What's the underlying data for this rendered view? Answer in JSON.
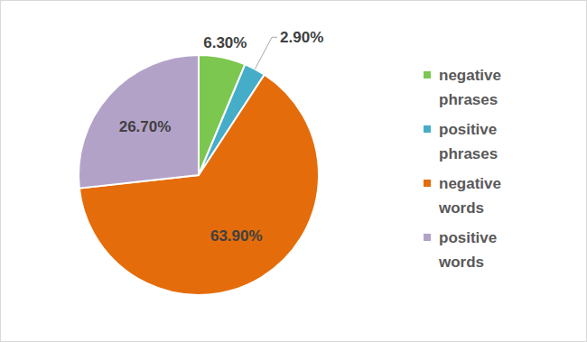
{
  "chart_data": {
    "type": "pie",
    "categories": [
      "negative phrases",
      "positive phrases",
      "negative words",
      "positive words"
    ],
    "values": [
      6.3,
      2.9,
      63.9,
      26.7
    ],
    "value_labels": [
      "6.30%",
      "2.90%",
      "63.90%",
      "26.70%"
    ],
    "colors": [
      "#7cc750",
      "#46adc8",
      "#e46c0a",
      "#b3a2c8"
    ],
    "data_labels": true,
    "legend": "right"
  }
}
